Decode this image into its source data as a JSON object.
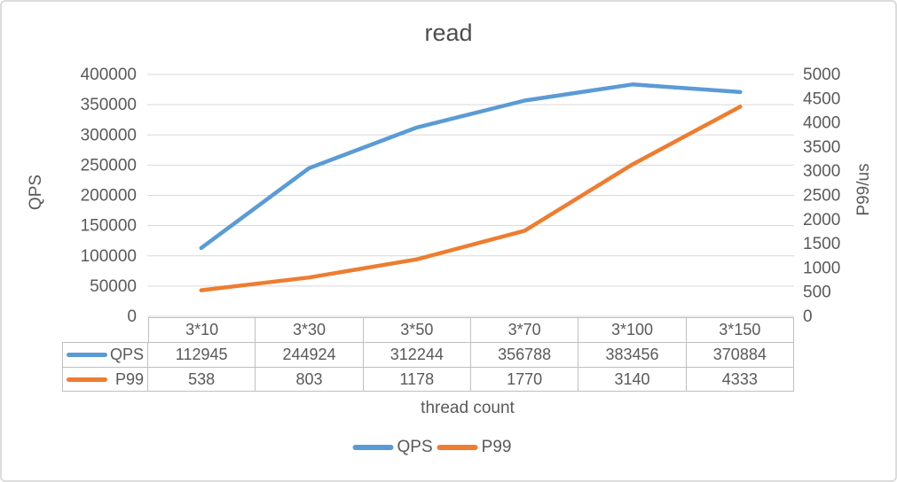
{
  "chart_data": {
    "type": "line",
    "title": "read",
    "xlabel": "thread count",
    "ylabel_left": "QPS",
    "ylabel_right": "P99/us",
    "categories": [
      "3*10",
      "3*30",
      "3*50",
      "3*70",
      "3*100",
      "3*150"
    ],
    "series": [
      {
        "name": "QPS",
        "axis": "left",
        "color": "#5B9BD5",
        "values": [
          112945,
          244924,
          312244,
          356788,
          383456,
          370884
        ]
      },
      {
        "name": "P99",
        "axis": "right",
        "color": "#ED7D31",
        "values": [
          538,
          803,
          1178,
          1770,
          3140,
          4333
        ]
      }
    ],
    "y_left": {
      "min": 0,
      "max": 400000,
      "tick_labels": [
        "0",
        "50000",
        "100000",
        "150000",
        "200000",
        "250000",
        "300000",
        "350000",
        "400000"
      ]
    },
    "y_right": {
      "min": 0,
      "max": 5000,
      "tick_labels": [
        "0",
        "500",
        "1000",
        "1500",
        "2000",
        "2500",
        "3000",
        "3500",
        "4000",
        "4500",
        "5000"
      ]
    },
    "grid": true,
    "legend_position": "bottom",
    "data_table": true
  },
  "colors": {
    "qps_series": "#5B9BD5",
    "p99_series": "#ED7D31",
    "gridline": "#d9d9d9",
    "table_border": "#bfbfbf",
    "text": "#595959"
  }
}
